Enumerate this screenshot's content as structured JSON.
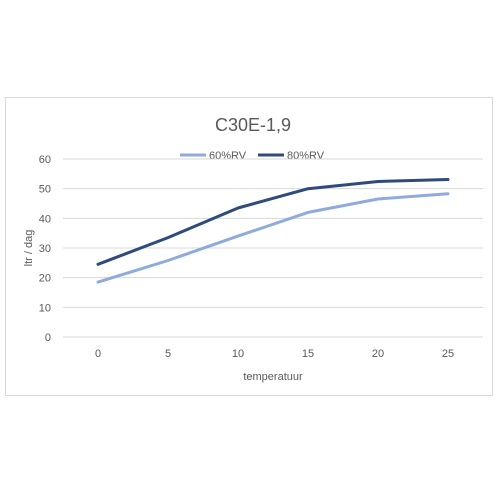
{
  "chart_data": {
    "type": "line",
    "title": "C30E-1,9",
    "xlabel": "temperatuur",
    "ylabel": "ltr / dag",
    "categories": [
      "0",
      "5",
      "10",
      "15",
      "20",
      "25"
    ],
    "ylim": [
      0,
      60
    ],
    "yticks": [
      "0",
      "10",
      "20",
      "30",
      "40",
      "50",
      "60"
    ],
    "grid": true,
    "legend_position": "top",
    "series": [
      {
        "name": "60%RV",
        "values": [
          18.5,
          25.8,
          34.0,
          42.0,
          46.5,
          48.3
        ],
        "color": "#8faadc"
      },
      {
        "name": "80%RV",
        "values": [
          24.5,
          33.5,
          43.5,
          50.0,
          52.4,
          53.1
        ],
        "color": "#2f4b7c"
      }
    ]
  }
}
